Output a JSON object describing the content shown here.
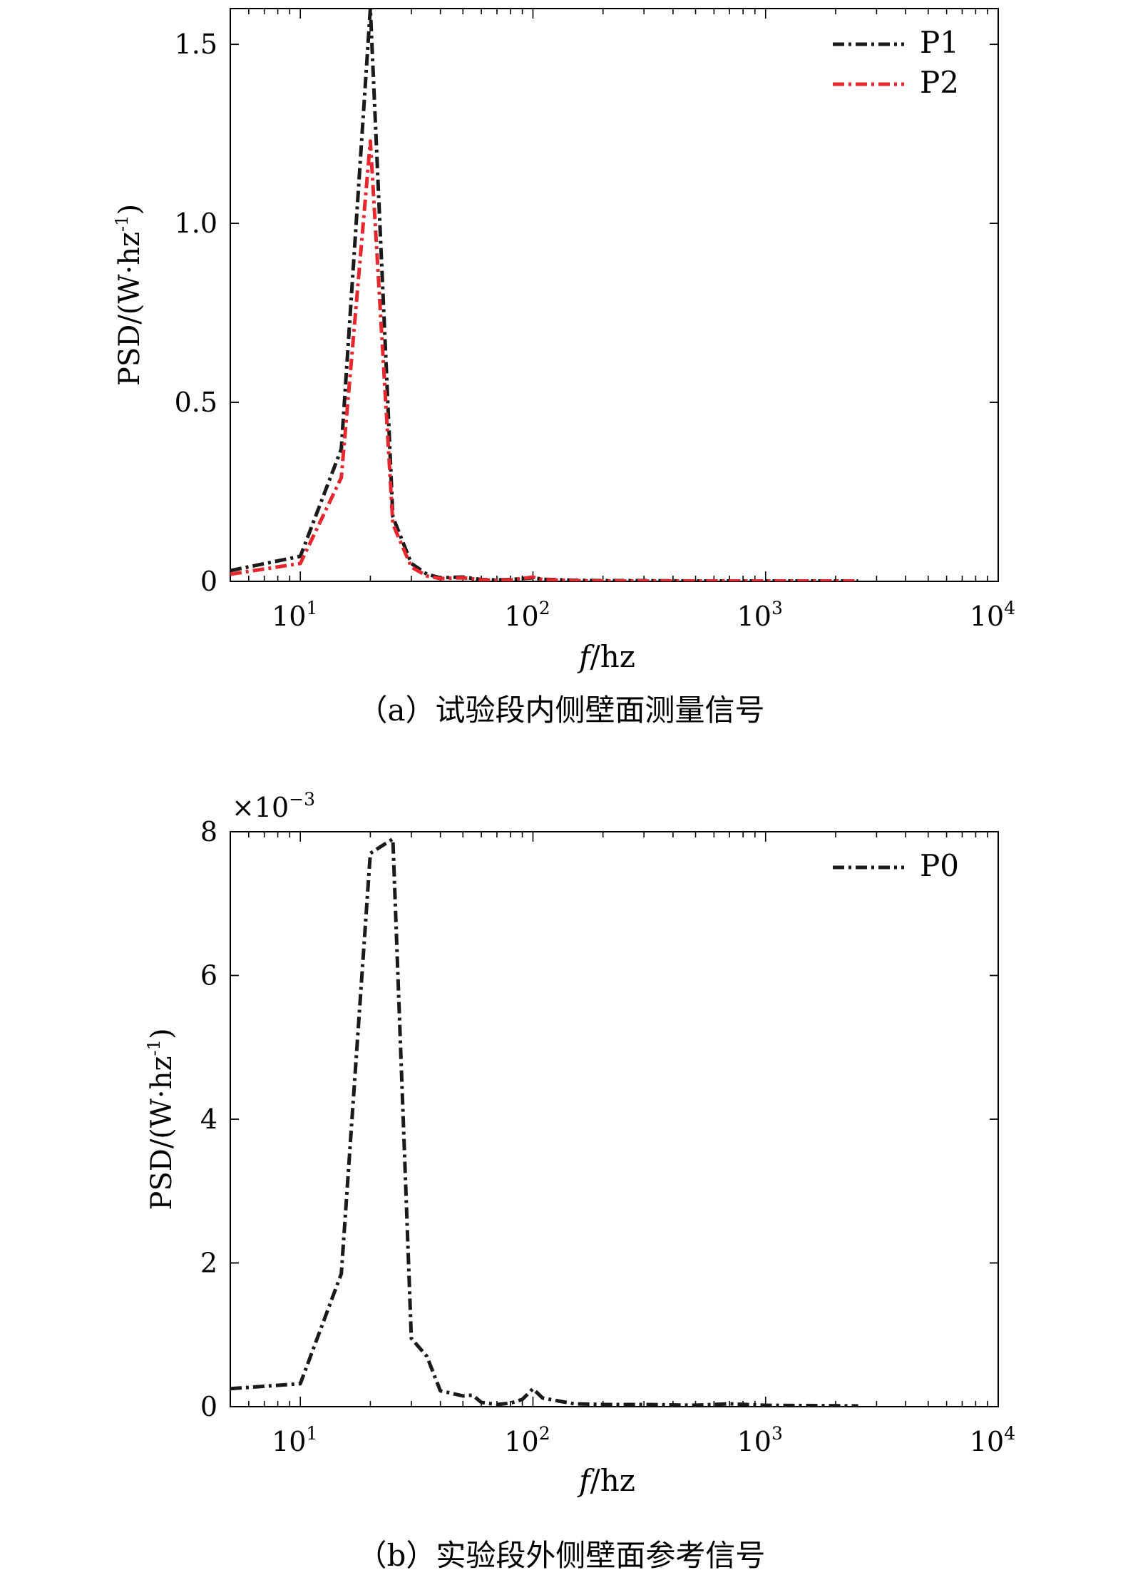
{
  "chart_data": [
    {
      "type": "line",
      "panel": "a",
      "caption": "（a）试验段内侧壁面测量信号",
      "xlabel_italic": "f",
      "xlabel_rest": "/hz",
      "ylabel": "PSD/(W·hz",
      "ylabel_exp": "-1",
      "ylabel_close": ")",
      "x_scale": "log",
      "xlim": [
        5,
        10000
      ],
      "ylim": [
        0,
        1.6
      ],
      "y_ticks": [
        0,
        0.5,
        1.0,
        1.5
      ],
      "y_tick_labels": [
        "0",
        "0.5",
        "1.0",
        "1.5"
      ],
      "x_ticks": [
        10,
        100,
        1000,
        10000
      ],
      "x_tick_labels": [
        {
          "base": "10",
          "exp": "1"
        },
        {
          "base": "10",
          "exp": "2"
        },
        {
          "base": "10",
          "exp": "3"
        },
        {
          "base": "10",
          "exp": "4"
        }
      ],
      "grid": false,
      "legend_position": "top-right",
      "series": [
        {
          "name": "P1",
          "color": "#1a1a1a",
          "x": [
            5,
            10,
            15,
            20,
            25,
            30,
            35,
            40,
            50,
            60,
            70,
            80,
            100,
            110,
            150,
            200,
            300,
            500,
            1000,
            2500
          ],
          "y": [
            0.03,
            0.07,
            0.37,
            1.6,
            0.18,
            0.05,
            0.02,
            0.01,
            0.012,
            0.005,
            0.004,
            0.005,
            0.01,
            0.006,
            0.003,
            0.002,
            0.002,
            0.001,
            0.001,
            0.001
          ]
        },
        {
          "name": "P2",
          "color": "#e8262e",
          "x": [
            5,
            10,
            15,
            20,
            25,
            30,
            35,
            40,
            50,
            60,
            70,
            80,
            100,
            110,
            150,
            200,
            300,
            500,
            1000,
            2500
          ],
          "y": [
            0.02,
            0.05,
            0.29,
            1.23,
            0.16,
            0.04,
            0.015,
            0.008,
            0.01,
            0.004,
            0.003,
            0.004,
            0.012,
            0.005,
            0.002,
            0.001,
            0.001,
            0.001,
            0.001,
            0.001
          ]
        }
      ]
    },
    {
      "type": "line",
      "panel": "b",
      "caption": "（b）实验段外侧壁面参考信号",
      "xlabel_italic": "f",
      "xlabel_rest": "/hz",
      "ylabel": "PSD/(W·hz",
      "ylabel_exp": "-1",
      "ylabel_close": ")",
      "y_multiplier": "×10",
      "y_multiplier_exp": "−3",
      "x_scale": "log",
      "xlim": [
        5,
        10000
      ],
      "ylim": [
        0,
        8
      ],
      "y_ticks": [
        0,
        2,
        4,
        6,
        8
      ],
      "y_tick_labels": [
        "0",
        "2",
        "4",
        "6",
        "8"
      ],
      "x_ticks": [
        10,
        100,
        1000,
        10000
      ],
      "x_tick_labels": [
        {
          "base": "10",
          "exp": "1"
        },
        {
          "base": "10",
          "exp": "2"
        },
        {
          "base": "10",
          "exp": "3"
        },
        {
          "base": "10",
          "exp": "4"
        }
      ],
      "grid": false,
      "legend_position": "top-right",
      "series": [
        {
          "name": "P0",
          "color": "#1a1a1a",
          "x": [
            5,
            10,
            15,
            20,
            25,
            30,
            35,
            40,
            50,
            55,
            60,
            70,
            80,
            90,
            100,
            110,
            150,
            200,
            300,
            500,
            700,
            1000,
            2500
          ],
          "y": [
            0.25,
            0.32,
            1.85,
            7.7,
            7.9,
            0.95,
            0.7,
            0.22,
            0.15,
            0.16,
            0.06,
            0.03,
            0.05,
            0.1,
            0.25,
            0.12,
            0.04,
            0.03,
            0.03,
            0.02,
            0.04,
            0.02,
            0.01
          ]
        }
      ]
    }
  ]
}
